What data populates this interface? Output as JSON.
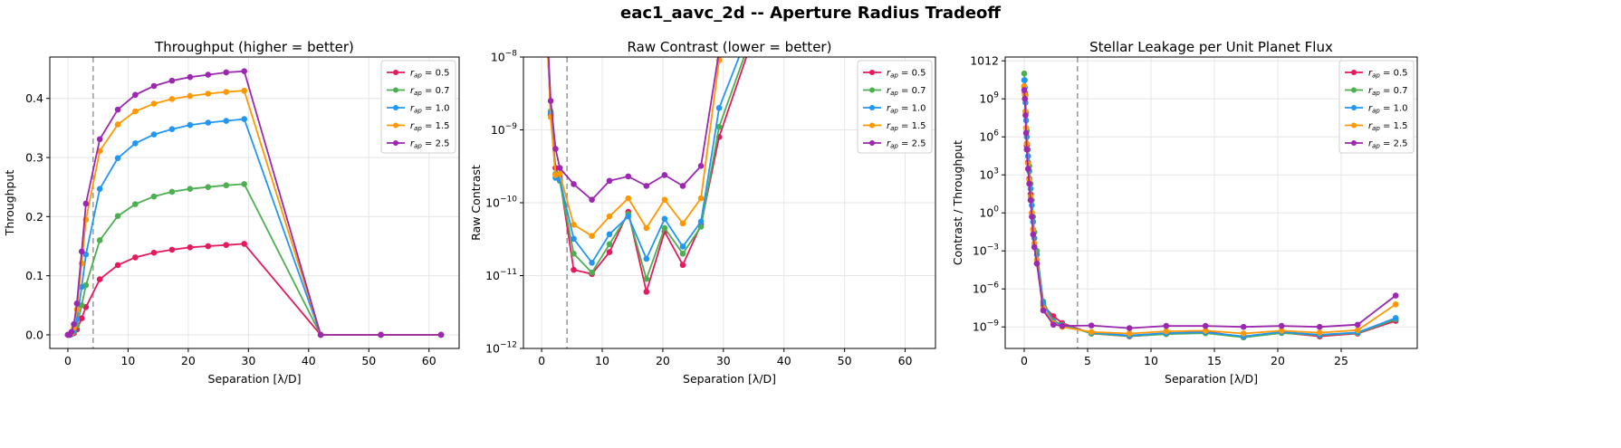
{
  "suptitle": "eac1_aavc_2d -- Aperture Radius Tradeoff",
  "colors": {
    "series": [
      "#e6195d",
      "#4caf50",
      "#2196f3",
      "#ff9800",
      "#9c27b0"
    ],
    "vline": "#999999",
    "grid": "#e6e6e6"
  },
  "chart_data": [
    {
      "type": "line",
      "title": "Throughput (higher = better)",
      "xlabel": "Separation [λ/D]",
      "ylabel": "Throughput",
      "yscale": "linear",
      "xlim": [
        -3,
        65
      ],
      "ylim": [
        -0.023,
        0.47
      ],
      "xticks": [
        0,
        10,
        20,
        30,
        40,
        50,
        60
      ],
      "xtick_labels": [
        "0",
        "10",
        "20",
        "30",
        "40",
        "50",
        "60"
      ],
      "yticks": [
        0.0,
        0.1,
        0.2,
        0.3,
        0.4
      ],
      "ytick_labels": [
        "0.0",
        "0.1",
        "0.2",
        "0.3",
        "0.4"
      ],
      "vline_x": 4.2,
      "grid": true,
      "legend_loc": "upper right",
      "x": [
        0,
        0.3,
        0.6,
        1,
        1.5,
        2.3,
        3,
        5.3,
        8.3,
        11.2,
        14.3,
        17.3,
        20.3,
        23.3,
        26.3,
        29.3,
        42,
        52,
        62
      ],
      "series": [
        {
          "name": "r_ap = 0.5",
          "values": [
            0,
            0,
            0.001,
            0.003,
            0.009,
            0.028,
            0.047,
            0.094,
            0.118,
            0.131,
            0.139,
            0.144,
            0.148,
            0.15,
            0.152,
            0.154,
            0,
            0,
            0
          ]
        },
        {
          "name": "r_ap = 0.7",
          "values": [
            0,
            0,
            0.001,
            0.005,
            0.016,
            0.05,
            0.084,
            0.16,
            0.201,
            0.221,
            0.234,
            0.242,
            0.247,
            0.25,
            0.253,
            0.255,
            0,
            0,
            0
          ]
        },
        {
          "name": "r_ap = 1.0",
          "values": [
            0,
            0,
            0.002,
            0.008,
            0.026,
            0.081,
            0.136,
            0.247,
            0.299,
            0.324,
            0.339,
            0.348,
            0.355,
            0.359,
            0.362,
            0.365,
            0,
            0,
            0
          ]
        },
        {
          "name": "r_ap = 1.5",
          "values": [
            0,
            0,
            0.003,
            0.012,
            0.043,
            0.121,
            0.195,
            0.311,
            0.356,
            0.378,
            0.391,
            0.399,
            0.404,
            0.408,
            0.411,
            0.413,
            0,
            0,
            0
          ]
        },
        {
          "name": "r_ap = 2.5",
          "values": [
            0,
            0,
            0.005,
            0.018,
            0.053,
            0.141,
            0.222,
            0.331,
            0.381,
            0.406,
            0.421,
            0.43,
            0.436,
            0.44,
            0.444,
            0.446,
            0,
            0,
            0
          ]
        }
      ]
    },
    {
      "type": "line",
      "title": "Raw Contrast (lower = better)",
      "xlabel": "Separation [λ/D]",
      "ylabel": "Raw Contrast",
      "yscale": "log",
      "xlim": [
        -3,
        65
      ],
      "ylim": [
        1e-12,
        1e-08
      ],
      "xticks": [
        0,
        10,
        20,
        30,
        40,
        50,
        60
      ],
      "xtick_labels": [
        "0",
        "10",
        "20",
        "30",
        "40",
        "50",
        "60"
      ],
      "yticks": [
        1e-12,
        1e-11,
        1e-10,
        1e-09,
        1e-08
      ],
      "ytick_labels": [
        "10−12",
        "10−11",
        "10−10",
        "10−9",
        "10−8"
      ],
      "vline_x": 4.2,
      "grid": true,
      "legend_loc": "upper right",
      "x": [
        0,
        1.5,
        2.3,
        3,
        5.3,
        8.3,
        11.2,
        14.3,
        17.3,
        20.3,
        23.3,
        26.3,
        29.3,
        42
      ],
      "series": [
        {
          "name": "r_ap = 0.5",
          "values": [
            1e-06,
            1.6e-09,
            3e-10,
            2.2e-10,
            1.2e-11,
            1.05e-11,
            2.1e-11,
            7.5e-11,
            6e-12,
            4e-11,
            1.4e-11,
            5e-11,
            8e-10,
            1e-06
          ]
        },
        {
          "name": "r_ap = 0.7",
          "values": [
            1e-06,
            1.8e-09,
            2.5e-10,
            2e-10,
            2e-11,
            1.1e-11,
            2.7e-11,
            7e-11,
            9e-12,
            4.5e-11,
            2e-11,
            4.7e-11,
            1.1e-09,
            1e-06
          ]
        },
        {
          "name": "r_ap = 1.0",
          "values": [
            1e-06,
            1.7e-09,
            2.2e-10,
            2.1e-10,
            3.2e-11,
            1.5e-11,
            3.7e-11,
            6.5e-11,
            1.7e-11,
            6e-11,
            2.5e-11,
            5.5e-11,
            2e-09,
            1e-06
          ]
        },
        {
          "name": "r_ap = 1.5",
          "values": [
            1e-06,
            1.5e-09,
            2.4e-10,
            2.5e-10,
            5e-11,
            3.5e-11,
            6.5e-11,
            1.15e-10,
            4.5e-11,
            1.1e-10,
            5.2e-11,
            1.15e-10,
            9e-09,
            1e-06
          ]
        },
        {
          "name": "r_ap = 2.5",
          "values": [
            1e-06,
            2.5e-09,
            5.5e-10,
            3e-10,
            1.8e-10,
            1.1e-10,
            2e-10,
            2.3e-10,
            1.7e-10,
            2.4e-10,
            1.7e-10,
            3.2e-10,
            1.2e-08,
            1e-06
          ]
        }
      ]
    },
    {
      "type": "line",
      "title": "Stellar Leakage per Unit Planet Flux",
      "xlabel": "Separation [λ/D]",
      "ylabel": "Contrast / Throughput",
      "yscale": "log",
      "xlim": [
        -1.5,
        31
      ],
      "ylim": [
        2e-11,
        2000000000000.0
      ],
      "xticks": [
        0,
        5,
        10,
        15,
        20,
        25
      ],
      "xtick_labels": [
        "0",
        "5",
        "10",
        "15",
        "20",
        "25"
      ],
      "yticks": [
        1e-09,
        1e-06,
        0.001,
        1,
        1000.0,
        1000000.0,
        1000000000.0,
        1000000000000.0
      ],
      "ytick_labels": [
        "10−9",
        "10−6",
        "10−3",
        "100",
        "103",
        "106",
        "109",
        "1012"
      ],
      "vline_x": 4.2,
      "grid": true,
      "legend_loc": "upper right",
      "x": [
        0,
        0.05,
        0.1,
        0.15,
        0.2,
        0.3,
        0.4,
        0.5,
        0.6,
        0.7,
        0.8,
        1.0,
        1.5,
        2.3,
        3.0,
        5.3,
        8.3,
        11.2,
        14.3,
        17.3,
        20.3,
        23.3,
        26.3,
        29.3
      ],
      "series": [
        {
          "name": "r_ap = 0.5",
          "values": [
            10000000000.0,
            3000000000.0,
            100000000.0,
            5000000.0,
            200000.0,
            10000.0,
            500,
            30,
            1,
            0.05,
            0.002,
            0.0001,
            5e-08,
            7e-09,
            2e-09,
            3e-10,
            1.8e-10,
            2.8e-10,
            4.5e-10,
            1.5e-10,
            3.5e-10,
            1.8e-10,
            3e-10,
            3e-09
          ]
        },
        {
          "name": "r_ap = 0.7",
          "values": [
            100000000000.0,
            30000000000.0,
            2000000000.0,
            80000000.0,
            3000000.0,
            100000.0,
            5000,
            200,
            10,
            0.5,
            0.03,
            0.001,
            1e-07,
            3e-09,
            1.5e-09,
            3e-10,
            1.9e-10,
            2.7e-10,
            3.2e-10,
            1.5e-10,
            3.3e-10,
            2.2e-10,
            3.3e-10,
            4e-09
          ]
        },
        {
          "name": "r_ap = 1.0",
          "values": [
            30000000000.0,
            8000000000.0,
            500000000.0,
            20000000.0,
            1000000.0,
            30000.0,
            2000,
            80,
            4,
            0.2,
            0.01,
            0.0005,
            7e-08,
            2.5e-09,
            1.3e-09,
            3.5e-10,
            2.1e-10,
            3.3e-10,
            3.8e-10,
            1.8e-10,
            4e-10,
            2.4e-10,
            3.7e-10,
            5e-09
          ]
        },
        {
          "name": "r_ap = 1.5",
          "values": [
            10000000000.0,
            2000000000.0,
            100000000.0,
            5000000.0,
            300000.0,
            8000,
            400,
            20,
            1,
            0.05,
            0.004,
            0.0002,
            3e-08,
            2e-09,
            1e-09,
            4e-10,
            3e-10,
            4.5e-10,
            5e-10,
            3e-10,
            5e-10,
            3.5e-10,
            5.5e-10,
            6e-08
          ]
        },
        {
          "name": "r_ap = 2.5",
          "values": [
            5000000000.0,
            1000000000.0,
            50000000.0,
            2000000.0,
            100000.0,
            3000,
            200,
            10,
            0.5,
            0.02,
            0.002,
            0.0001,
            2e-08,
            1.5e-09,
            1.2e-09,
            1.3e-09,
            8e-10,
            1.2e-09,
            1.2e-09,
            1e-09,
            1.2e-09,
            1e-09,
            1.5e-09,
            3e-07
          ]
        }
      ]
    }
  ]
}
